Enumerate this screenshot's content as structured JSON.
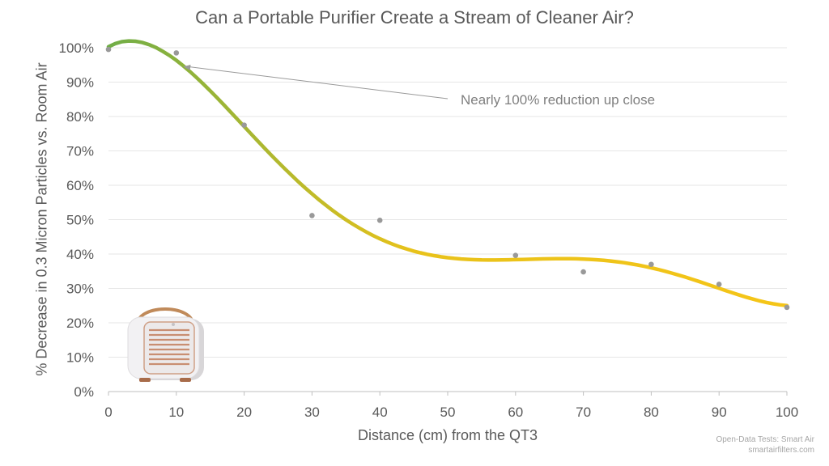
{
  "chart_data": {
    "type": "scatter",
    "title": "Can a Portable Purifier Create a Stream of Cleaner Air?",
    "xlabel": "Distance (cm) from the QT3",
    "ylabel": "% Decrease in 0.3 Micron Particles vs. Room Air",
    "xlim": [
      0,
      100
    ],
    "ylim": [
      0,
      100
    ],
    "x_ticks": [
      "0",
      "10",
      "20",
      "30",
      "40",
      "50",
      "60",
      "70",
      "80",
      "90",
      "100"
    ],
    "y_ticks": [
      "0%",
      "10%",
      "20%",
      "30%",
      "40%",
      "50%",
      "60%",
      "70%",
      "80%",
      "90%",
      "100%"
    ],
    "grid": "horizontal",
    "series": [
      {
        "x": [
          0,
          10,
          20,
          30,
          40,
          60,
          70,
          80,
          90,
          100
        ],
        "y": [
          99.5,
          98.5,
          77.5,
          51.2,
          49.8,
          39.6,
          34.8,
          37.0,
          31.2,
          24.5
        ],
        "color": "#999999"
      }
    ],
    "trendline": {
      "type": "polynomial",
      "color_start": "#70ad47",
      "color_end": "#f5c518"
    },
    "annotation": {
      "text": "Nearly 100% reduction up close",
      "points_to": {
        "x": 11,
        "y": 94.5
      }
    }
  },
  "source": {
    "line1": "Open-Data Tests: Smart Air",
    "line2": "smartairfilters.com"
  },
  "colors": {
    "grid": "#e6e6e6",
    "axis": "#bfbfbf",
    "point": "#999999",
    "text": "#595959"
  }
}
